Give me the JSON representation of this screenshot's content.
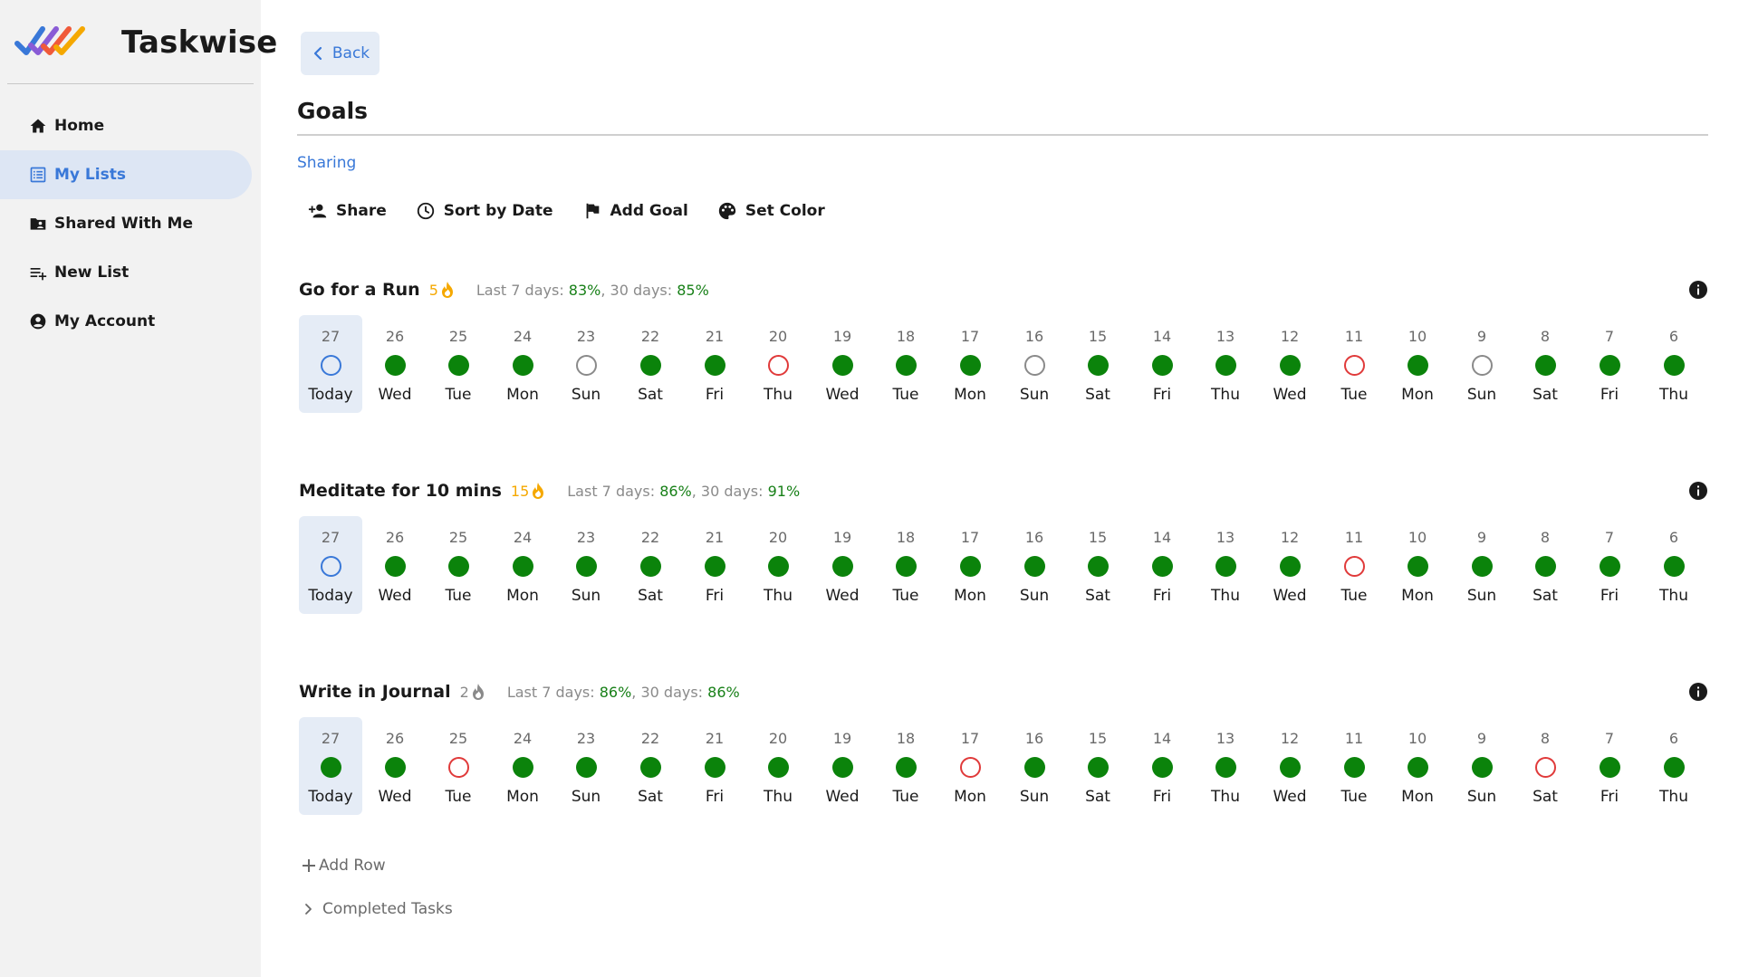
{
  "app": {
    "name": "Taskwise"
  },
  "sidebar": {
    "items": [
      {
        "label": "Home",
        "icon": "home-icon",
        "active": false
      },
      {
        "label": "My Lists",
        "icon": "list-icon",
        "active": true
      },
      {
        "label": "Shared With Me",
        "icon": "shared-folder-icon",
        "active": false
      },
      {
        "label": "New List",
        "icon": "playlist-add-icon",
        "active": false
      },
      {
        "label": "My Account",
        "icon": "account-circle-icon",
        "active": false
      }
    ]
  },
  "header": {
    "back_label": "Back",
    "title": "Goals",
    "sharing_label": "Sharing"
  },
  "toolbar": [
    {
      "label": "Share",
      "icon": "person-add-icon"
    },
    {
      "label": "Sort by Date",
      "icon": "clock-icon"
    },
    {
      "label": "Add Goal",
      "icon": "flag-icon"
    },
    {
      "label": "Set Color",
      "icon": "palette-icon"
    }
  ],
  "colors": {
    "accent": "#3978d8",
    "done": "#0b830b",
    "missed": "#e03a3a",
    "skipped": "#8a8a8a",
    "streak": "#f5a800"
  },
  "day_numbers": [
    "27",
    "26",
    "25",
    "24",
    "23",
    "22",
    "21",
    "20",
    "19",
    "18",
    "17",
    "16",
    "15",
    "14",
    "13",
    "12",
    "11",
    "10",
    "9",
    "8",
    "7",
    "6"
  ],
  "day_names": [
    "Today",
    "Wed",
    "Tue",
    "Mon",
    "Sun",
    "Sat",
    "Fri",
    "Thu",
    "Wed",
    "Tue",
    "Mon",
    "Sun",
    "Sat",
    "Fri",
    "Thu",
    "Wed",
    "Tue",
    "Mon",
    "Sun",
    "Sat",
    "Fri",
    "Thu"
  ],
  "goals": [
    {
      "name": "Go for a Run",
      "streak": "5",
      "streak_hot": true,
      "stats_prefix7": "Last 7 days: ",
      "pct7": "83%",
      "stats_prefix30": ", 30 days: ",
      "pct30": "85%",
      "statuses": [
        "today",
        "done",
        "done",
        "done",
        "skip",
        "done",
        "done",
        "missed",
        "done",
        "done",
        "done",
        "skip",
        "done",
        "done",
        "done",
        "done",
        "missed",
        "done",
        "skip",
        "done",
        "done",
        "done"
      ]
    },
    {
      "name": "Meditate for 10 mins",
      "streak": "15",
      "streak_hot": true,
      "stats_prefix7": "Last 7 days: ",
      "pct7": "86%",
      "stats_prefix30": ", 30 days: ",
      "pct30": "91%",
      "statuses": [
        "today",
        "done",
        "done",
        "done",
        "done",
        "done",
        "done",
        "done",
        "done",
        "done",
        "done",
        "done",
        "done",
        "done",
        "done",
        "done",
        "missed",
        "done",
        "done",
        "done",
        "done",
        "done"
      ]
    },
    {
      "name": "Write in Journal",
      "streak": "2",
      "streak_hot": false,
      "stats_prefix7": "Last 7 days: ",
      "pct7": "86%",
      "stats_prefix30": ", 30 days: ",
      "pct30": "86%",
      "statuses": [
        "done",
        "done",
        "missed",
        "done",
        "done",
        "done",
        "done",
        "done",
        "done",
        "done",
        "missed",
        "done",
        "done",
        "done",
        "done",
        "done",
        "done",
        "done",
        "done",
        "missed",
        "done",
        "done"
      ]
    }
  ],
  "footer": {
    "add_row_label": "Add Row",
    "completed_label": "Completed Tasks"
  }
}
